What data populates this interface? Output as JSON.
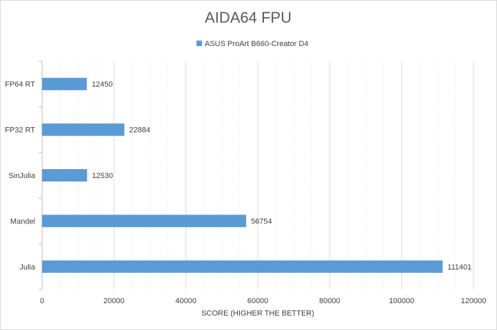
{
  "chart_data": {
    "type": "bar",
    "orientation": "horizontal",
    "title": "AIDA64 FPU",
    "xlabel": "SCORE (HIGHER THE BETTER)",
    "ylabel": "",
    "categories": [
      "FP64 RT",
      "FP32 RT",
      "SinJulia",
      "Mandel",
      "Julia"
    ],
    "series": [
      {
        "name": "ASUS ProArt B660-Creator D4",
        "values": [
          12450,
          22884,
          12530,
          56754,
          111401
        ],
        "color": "#5b9bd5"
      }
    ],
    "xlim": [
      0,
      120000
    ],
    "xticks": [
      "0",
      "20000",
      "40000",
      "60000",
      "80000",
      "100000",
      "120000"
    ],
    "grid": true,
    "legend_position": "top",
    "data_labels": true
  }
}
